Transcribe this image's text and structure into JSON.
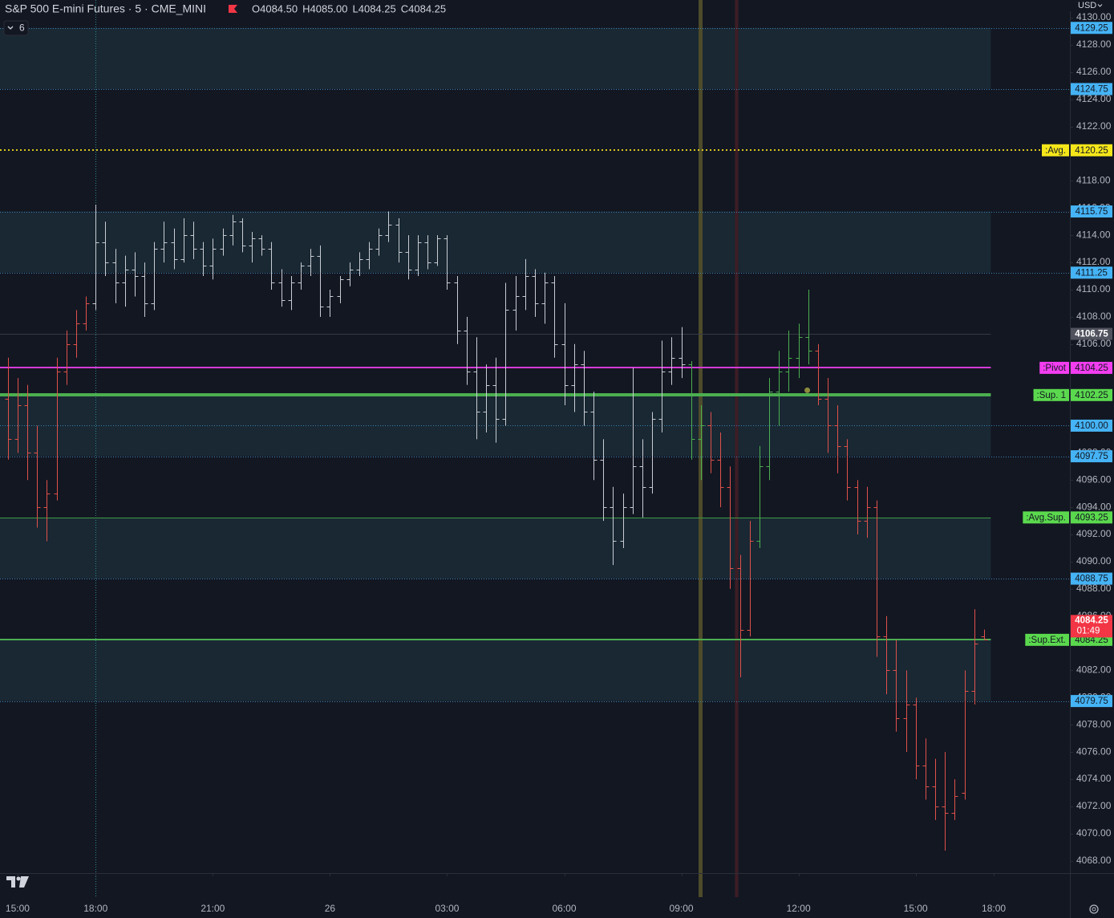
{
  "chart_data": {
    "type": "ohlc",
    "title": "S&P 500 E-mini Futures · 5 · CME_MINI",
    "legend_ohlc": [
      "O4084.50",
      "H4085.00",
      "L4084.25",
      "C4084.25"
    ],
    "indicator_toggle": "6",
    "currency": "USD",
    "xlim": [
      -0.8,
      108.8
    ],
    "ylim": [
      4067.1,
      4131.3
    ],
    "xticks": [
      {
        "value": 1,
        "label": "15:00"
      },
      {
        "value": 9,
        "label": "18:00"
      },
      {
        "value": 21,
        "label": "21:00"
      },
      {
        "value": 33,
        "label": "26"
      },
      {
        "value": 45,
        "label": "03:00"
      },
      {
        "value": 57,
        "label": "06:00"
      },
      {
        "value": 69,
        "label": "09:00"
      },
      {
        "value": 81,
        "label": "12:00"
      },
      {
        "value": 93,
        "label": "15:00"
      },
      {
        "value": 101,
        "label": "18:00"
      }
    ],
    "yticks": [
      {
        "value": 4130,
        "label": "4130.00"
      },
      {
        "value": 4128,
        "label": "4128.00"
      },
      {
        "value": 4126,
        "label": "4126.00"
      },
      {
        "value": 4124,
        "label": "4124.00"
      },
      {
        "value": 4122,
        "label": "4122.00"
      },
      {
        "value": 4120,
        "label": "4120.00"
      },
      {
        "value": 4118,
        "label": "4118.00"
      },
      {
        "value": 4116,
        "label": "4116.00"
      },
      {
        "value": 4114,
        "label": "4114.00"
      },
      {
        "value": 4112,
        "label": "4112.00"
      },
      {
        "value": 4110,
        "label": "4110.00"
      },
      {
        "value": 4108,
        "label": "4108.00"
      },
      {
        "value": 4106,
        "label": "4106.00"
      },
      {
        "value": 4104,
        "label": "4104.00"
      },
      {
        "value": 4102,
        "label": "4102.00"
      },
      {
        "value": 4100,
        "label": "4100.00"
      },
      {
        "value": 4098,
        "label": "4098.00"
      },
      {
        "value": 4096,
        "label": "4096.00"
      },
      {
        "value": 4094,
        "label": "4094.00"
      },
      {
        "value": 4092,
        "label": "4092.00"
      },
      {
        "value": 4090,
        "label": "4090.00"
      },
      {
        "value": 4088,
        "label": "4088.00"
      },
      {
        "value": 4086,
        "label": "4086.00"
      },
      {
        "value": 4084,
        "label": "4084.00"
      },
      {
        "value": 4082,
        "label": "4082.00"
      },
      {
        "value": 4080,
        "label": "4080.00"
      },
      {
        "value": 4078,
        "label": "4078.00"
      },
      {
        "value": 4076,
        "label": "4076.00"
      },
      {
        "value": 4074,
        "label": "4074.00"
      },
      {
        "value": 4072,
        "label": "4072.00"
      },
      {
        "value": 4070,
        "label": "4070.00"
      },
      {
        "value": 4068,
        "label": "4068.00"
      }
    ],
    "ohlc": [
      [
        4102,
        4105,
        4097.5,
        4099
      ],
      [
        4099,
        4103.5,
        4098,
        4101.5
      ],
      [
        4101.5,
        4103,
        4096,
        4098
      ],
      [
        4098,
        4100,
        4092.5,
        4094
      ],
      [
        4094,
        4096,
        4091.5,
        4095
      ],
      [
        4095,
        4105,
        4094.5,
        4104
      ],
      [
        4104,
        4107,
        4103,
        4106
      ],
      [
        4106,
        4108.5,
        4105,
        4107.5
      ],
      [
        4107.5,
        4109.5,
        4107,
        4109
      ],
      [
        4109,
        4116.25,
        4108.5,
        4113.5
      ],
      [
        4113.5,
        4115,
        4111,
        4112
      ],
      [
        4112,
        4113,
        4109,
        4110.5
      ],
      [
        4110.5,
        4112.5,
        4108.75,
        4111.5
      ],
      [
        4111.5,
        4112.75,
        4109.5,
        4111
      ],
      [
        4111,
        4112,
        4108,
        4109
      ],
      [
        4109,
        4113.5,
        4108.5,
        4113
      ],
      [
        4113,
        4115,
        4112,
        4113.5
      ],
      [
        4113.5,
        4114.5,
        4111.5,
        4112.25
      ],
      [
        4112.25,
        4115.25,
        4112,
        4114
      ],
      [
        4114,
        4115,
        4112.25,
        4113
      ],
      [
        4113,
        4113.5,
        4111,
        4111.75
      ],
      [
        4111.75,
        4113.75,
        4110.75,
        4113
      ],
      [
        4113,
        4114.5,
        4112.5,
        4114
      ],
      [
        4114,
        4115.5,
        4113.25,
        4115
      ],
      [
        4115,
        4115.25,
        4112.75,
        4113.25
      ],
      [
        4113.25,
        4114.25,
        4112,
        4113.75
      ],
      [
        4113.75,
        4114,
        4112.5,
        4113
      ],
      [
        4113,
        4113.5,
        4110,
        4110.5
      ],
      [
        4110.5,
        4111.5,
        4108.75,
        4109.25
      ],
      [
        4109.25,
        4111,
        4108.5,
        4110.5
      ],
      [
        4110.5,
        4112,
        4110,
        4111.75
      ],
      [
        4111.75,
        4113,
        4111,
        4112.5
      ],
      [
        4112.5,
        4113.25,
        4108,
        4108.75
      ],
      [
        4108.75,
        4110,
        4108,
        4109.5
      ],
      [
        4109.5,
        4111,
        4109,
        4110.75
      ],
      [
        4110.75,
        4112,
        4110.25,
        4111.5
      ],
      [
        4111.5,
        4112.75,
        4111,
        4112.25
      ],
      [
        4112.25,
        4113.5,
        4111.5,
        4113
      ],
      [
        4113,
        4114.5,
        4112.5,
        4114
      ],
      [
        4114,
        4115.75,
        4113.5,
        4114.75
      ],
      [
        4114.75,
        4115.25,
        4112,
        4112.75
      ],
      [
        4112.75,
        4114,
        4110.75,
        4111.5
      ],
      [
        4111.5,
        4114,
        4111,
        4113.5
      ],
      [
        4113.5,
        4114,
        4111.5,
        4112
      ],
      [
        4112,
        4114,
        4111.75,
        4113.75
      ],
      [
        4113.75,
        4114,
        4110,
        4110.5
      ],
      [
        4110.5,
        4111,
        4106,
        4107
      ],
      [
        4107,
        4108,
        4103,
        4104
      ],
      [
        4104,
        4106.5,
        4099,
        4101
      ],
      [
        4101,
        4104.5,
        4099.5,
        4103
      ],
      [
        4103,
        4105,
        4098.75,
        4100.5
      ],
      [
        4100.5,
        4110.5,
        4100,
        4108.5
      ],
      [
        4108.5,
        4111,
        4107,
        4109.5
      ],
      [
        4109.5,
        4112.25,
        4108.5,
        4111
      ],
      [
        4111,
        4111.5,
        4108,
        4109
      ],
      [
        4109,
        4111.25,
        4107.5,
        4110.5
      ],
      [
        4110.5,
        4111,
        4105,
        4106
      ],
      [
        4106,
        4109,
        4101.5,
        4103
      ],
      [
        4103,
        4106,
        4101,
        4104.5
      ],
      [
        4104.5,
        4105.5,
        4100,
        4101
      ],
      [
        4101,
        4102.5,
        4096,
        4097.5
      ],
      [
        4097.5,
        4099,
        4093,
        4094
      ],
      [
        4094,
        4095.5,
        4089.75,
        4091.5
      ],
      [
        4091.5,
        4095,
        4091,
        4094
      ],
      [
        4094,
        4104.25,
        4093.5,
        4097
      ],
      [
        4097,
        4099,
        4093.25,
        4095.5
      ],
      [
        4095.5,
        4101,
        4095,
        4100.5
      ],
      [
        4100.5,
        4106.25,
        4099.5,
        4104
      ],
      [
        4104,
        4106.5,
        4103,
        4105
      ],
      [
        4105,
        4107.25,
        4103.5,
        4104.5
      ],
      [
        4104.5,
        4104.75,
        4097.5,
        4099
      ],
      [
        4099,
        4101.5,
        4096,
        4100
      ],
      [
        4100,
        4101,
        4096.5,
        4097.5
      ],
      [
        4097.5,
        4099.5,
        4094,
        4095.5
      ],
      [
        4095.5,
        4097,
        4088,
        4089.5
      ],
      [
        4089.5,
        4090.5,
        4081.5,
        4085
      ],
      [
        4085,
        4093,
        4084.5,
        4091.5
      ],
      [
        4091.5,
        4098.5,
        4091,
        4097
      ],
      [
        4097,
        4103.5,
        4096,
        4102.5
      ],
      [
        4102.5,
        4105.5,
        4100,
        4104
      ],
      [
        4104,
        4107,
        4102.5,
        4105
      ],
      [
        4105,
        4107.5,
        4103.5,
        4106.5
      ],
      [
        4106.5,
        4110,
        4104.5,
        4105.5
      ],
      [
        4105.5,
        4106,
        4101.5,
        4102
      ],
      [
        4102,
        4103.5,
        4098,
        4100
      ],
      [
        4100,
        4101.5,
        4096.5,
        4098.5
      ],
      [
        4098.5,
        4099,
        4094.5,
        4095.5
      ],
      [
        4095.5,
        4096,
        4092,
        4093
      ],
      [
        4093,
        4095.5,
        4091.75,
        4094
      ],
      [
        4094,
        4094.5,
        4083,
        4084.5
      ],
      [
        4084.5,
        4086,
        4080.25,
        4082
      ],
      [
        4082,
        4084.25,
        4077.5,
        4078.5
      ],
      [
        4078.5,
        4082,
        4076,
        4079.5
      ],
      [
        4079.5,
        4080,
        4074,
        4075
      ],
      [
        4075,
        4077,
        4072.5,
        4073.5
      ],
      [
        4073.5,
        4075.5,
        4071,
        4072
      ],
      [
        4072,
        4076,
        4068.75,
        4071.5
      ],
      [
        4071.5,
        4074,
        4071,
        4072.75
      ],
      [
        4073,
        4082,
        4072.5,
        4080.5
      ],
      [
        4080.5,
        4086.5,
        4079.5,
        4084
      ],
      [
        4084.5,
        4085,
        4084.25,
        4084.25
      ]
    ],
    "bar_colors": [
      "#e0514a",
      "#e0514a",
      "#e0514a",
      "#e0514a",
      "#e0514a",
      "#e0514a",
      "#e0514a",
      "#e0514a",
      "#e0514a",
      "#c9ccd3",
      "#c9ccd3",
      "#c9ccd3",
      "#c9ccd3",
      "#c9ccd3",
      "#c9ccd3",
      "#c9ccd3",
      "#c9ccd3",
      "#c9ccd3",
      "#c9ccd3",
      "#c9ccd3",
      "#c9ccd3",
      "#c9ccd3",
      "#c9ccd3",
      "#c9ccd3",
      "#c9ccd3",
      "#c9ccd3",
      "#c9ccd3",
      "#c9ccd3",
      "#c9ccd3",
      "#c9ccd3",
      "#c9ccd3",
      "#c9ccd3",
      "#c9ccd3",
      "#c9ccd3",
      "#c9ccd3",
      "#c9ccd3",
      "#c9ccd3",
      "#c9ccd3",
      "#c9ccd3",
      "#c9ccd3",
      "#c9ccd3",
      "#c9ccd3",
      "#c9ccd3",
      "#c9ccd3",
      "#c9ccd3",
      "#c9ccd3",
      "#c9ccd3",
      "#c9ccd3",
      "#c9ccd3",
      "#c9ccd3",
      "#c9ccd3",
      "#c9ccd3",
      "#c9ccd3",
      "#c9ccd3",
      "#c9ccd3",
      "#c9ccd3",
      "#c9ccd3",
      "#c9ccd3",
      "#c9ccd3",
      "#c9ccd3",
      "#c9ccd3",
      "#c9ccd3",
      "#c9ccd3",
      "#c9ccd3",
      "#c9ccd3",
      "#c9ccd3",
      "#c9ccd3",
      "#c9ccd3",
      "#c9ccd3",
      "#c9ccd3",
      "#4caf50",
      "#4caf50",
      "#e0514a",
      "#e0514a",
      "#e0514a",
      "#e0514a",
      "#e0514a",
      "#4caf50",
      "#4caf50",
      "#4caf50",
      "#4caf50",
      "#4caf50",
      "#4caf50",
      "#e0514a",
      "#e0514a",
      "#e0514a",
      "#e0514a",
      "#e0514a",
      "#e0514a",
      "#e0514a",
      "#e0514a",
      "#e0514a",
      "#e0514a",
      "#e0514a",
      "#e0514a",
      "#e0514a",
      "#e0514a",
      "#e0514a",
      "#e0514a",
      "#e0514a",
      "#e0514a"
    ],
    "levels": [
      {
        "price": 4129.25,
        "price_label": "4129.25",
        "color": "#3c7fb0",
        "box": "#45b3f5",
        "style": "dotted",
        "width": 1
      },
      {
        "price": 4124.75,
        "price_label": "4124.75",
        "color": "#3c7fb0",
        "box": "#45b3f5",
        "style": "dotted",
        "width": 1
      },
      {
        "price": 4120.25,
        "price_label": "4120.25",
        "name": ":Avg.",
        "color": "#d8c81c",
        "box": "#f5e61a",
        "style": "dotted",
        "width": 2
      },
      {
        "price": 4115.75,
        "price_label": "4115.75",
        "color": "#3c7fb0",
        "box": "#45b3f5",
        "style": "dotted",
        "width": 1
      },
      {
        "price": 4111.25,
        "price_label": "4111.25",
        "color": "#3c7fb0",
        "box": "#45b3f5",
        "style": "dotted",
        "width": 1
      },
      {
        "price": 4106.75,
        "price_label": "4106.75",
        "color": "#363a45",
        "box": "#50535e",
        "style": "solid",
        "width": 1
      },
      {
        "price": 4104.25,
        "price_label": "4104.25",
        "name": ":Pivot",
        "color": "#d63ad8",
        "box": "#f23df0",
        "style": "solid",
        "width": 2
      },
      {
        "price": 4102.25,
        "price_label": "4102.25",
        "name": ":Sup. 1",
        "color": "#4caf50",
        "box": "#5bd94e",
        "style": "solid",
        "width": 4
      },
      {
        "price": 4100.0,
        "price_label": "4100.00",
        "color": "#3c7fb0",
        "box": "#45b3f5",
        "style": "dotted",
        "width": 1
      },
      {
        "price": 4097.75,
        "price_label": "4097.75",
        "color": "#3c7fb0",
        "box": "#45b3f5",
        "style": "dotted",
        "width": 1
      },
      {
        "price": 4093.25,
        "price_label": "4093.25",
        "name": ":Avg.Sup.",
        "color": "#3f9a43",
        "box": "#5bd94e",
        "style": "solid",
        "width": 1
      },
      {
        "price": 4088.75,
        "price_label": "4088.75",
        "color": "#3c7fb0",
        "box": "#45b3f5",
        "style": "dotted",
        "width": 1
      },
      {
        "price": 4084.25,
        "price_label": "4084.25",
        "name": ":Sup.Ext.",
        "color": "#4caf50",
        "box": "#5bd94e",
        "style": "solid",
        "width": 2
      },
      {
        "price": 4079.75,
        "price_label": "4079.75",
        "color": "#3c7fb0",
        "box": "#45b3f5",
        "style": "dotted",
        "width": 1
      }
    ],
    "zones": [
      [
        0,
        1
      ],
      [
        3,
        4
      ],
      [
        7,
        9
      ],
      [
        10,
        11
      ],
      [
        12,
        13
      ]
    ],
    "zone_color": "#1b2a35",
    "last_price": {
      "label": "4084.25",
      "countdown": "01:49",
      "color": "#f23645"
    },
    "vlines": [
      {
        "x": 9,
        "color": "#2a8a8a",
        "width": 1,
        "style": "dotted"
      },
      {
        "x": 70.9,
        "color": "#4d4b2a",
        "width": 5,
        "style": "solid"
      },
      {
        "x": 74.6,
        "color": "#3e1d25",
        "width": 4,
        "style": "solid"
      }
    ],
    "markers": [
      {
        "x": 81.9,
        "y": 4102.6,
        "color": "#8c8a3c"
      }
    ]
  }
}
